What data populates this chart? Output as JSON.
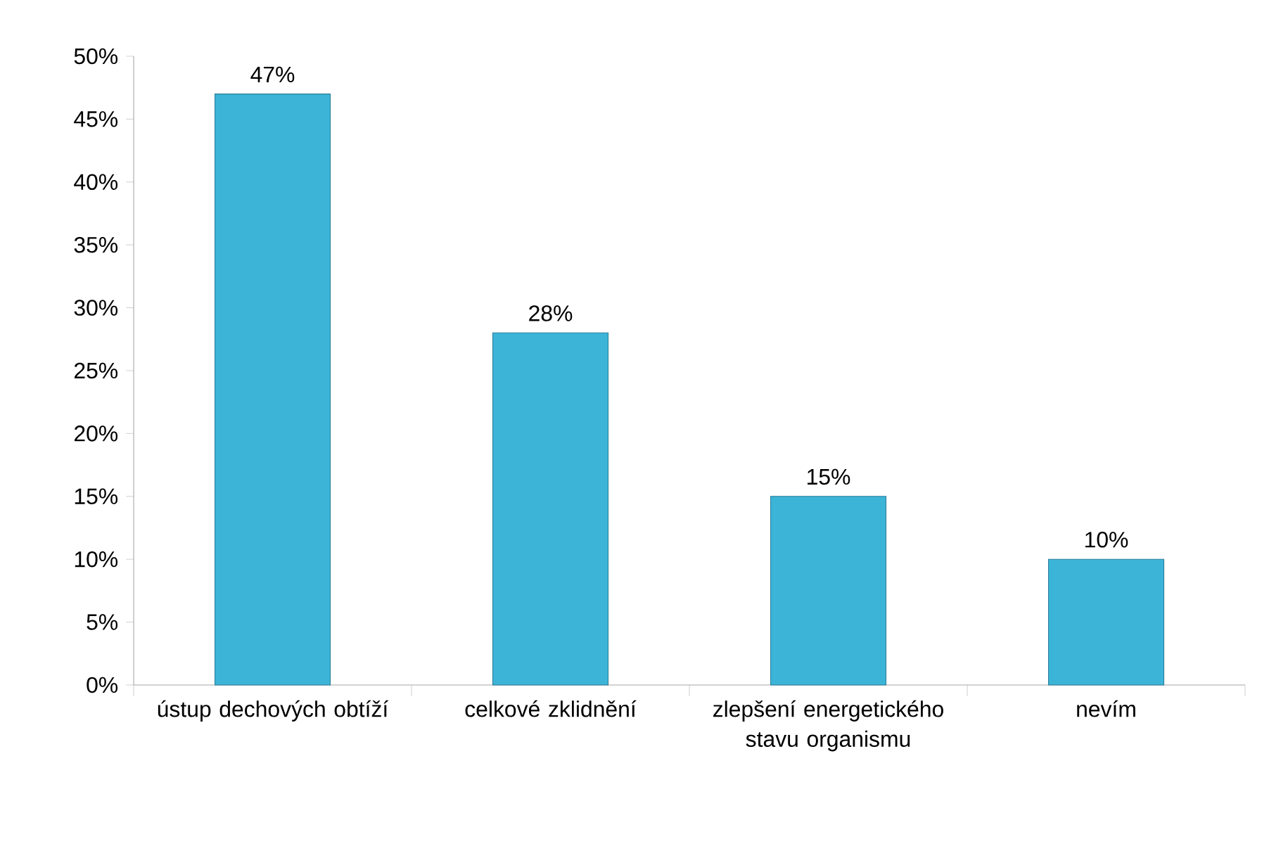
{
  "chart_data": {
    "type": "bar",
    "categories": [
      "ústup dechových obtíží",
      "celkové zklidnění",
      "zlepšení energetického stavu organismu",
      "nevím"
    ],
    "values": [
      47,
      28,
      15,
      10
    ],
    "value_labels": [
      "47%",
      "28%",
      "15%",
      "10%"
    ],
    "color": "#3cb4d8",
    "ylim": [
      0,
      50
    ],
    "yticks": [
      {
        "value": 0,
        "label": "0%"
      },
      {
        "value": 5,
        "label": "5%"
      },
      {
        "value": 10,
        "label": "10%"
      },
      {
        "value": 15,
        "label": "15%"
      },
      {
        "value": 20,
        "label": "20%"
      },
      {
        "value": 25,
        "label": "25%"
      },
      {
        "value": 30,
        "label": "30%"
      },
      {
        "value": 35,
        "label": "35%"
      },
      {
        "value": 40,
        "label": "40%"
      },
      {
        "value": 45,
        "label": "45%"
      },
      {
        "value": 50,
        "label": "50%"
      }
    ],
    "grid": false
  }
}
